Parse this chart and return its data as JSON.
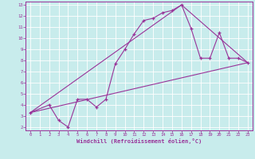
{
  "xlabel": "Windchill (Refroidissement éolien,°C)",
  "bg_color": "#c8ecec",
  "line_color": "#993399",
  "grid_color": "#ffffff",
  "spine_color": "#993399",
  "xlim": [
    -0.5,
    23.5
  ],
  "ylim": [
    1.7,
    13.3
  ],
  "xticks": [
    0,
    1,
    2,
    3,
    4,
    5,
    6,
    7,
    8,
    9,
    10,
    11,
    12,
    13,
    14,
    15,
    16,
    17,
    18,
    19,
    20,
    21,
    22,
    23
  ],
  "yticks": [
    2,
    3,
    4,
    5,
    6,
    7,
    8,
    9,
    10,
    11,
    12,
    13
  ],
  "line1_x": [
    0,
    2,
    3,
    4,
    5,
    6,
    7,
    8,
    9,
    10,
    11,
    12,
    13,
    14,
    15,
    16,
    17,
    18,
    19,
    20,
    21,
    22,
    23
  ],
  "line1_y": [
    3.3,
    4.0,
    2.6,
    2.0,
    4.5,
    4.5,
    3.8,
    4.5,
    7.7,
    9.0,
    10.4,
    11.6,
    11.8,
    12.3,
    12.5,
    13.0,
    10.9,
    8.2,
    8.2,
    10.5,
    8.2,
    8.2,
    7.8
  ],
  "line2_x": [
    0,
    23
  ],
  "line2_y": [
    3.3,
    7.8
  ],
  "line3_x": [
    0,
    16,
    23
  ],
  "line3_y": [
    3.3,
    13.0,
    7.8
  ],
  "tick_fontsize": 4.0,
  "xlabel_fontsize": 5.0,
  "marker_size": 3.5,
  "linewidth": 0.8
}
